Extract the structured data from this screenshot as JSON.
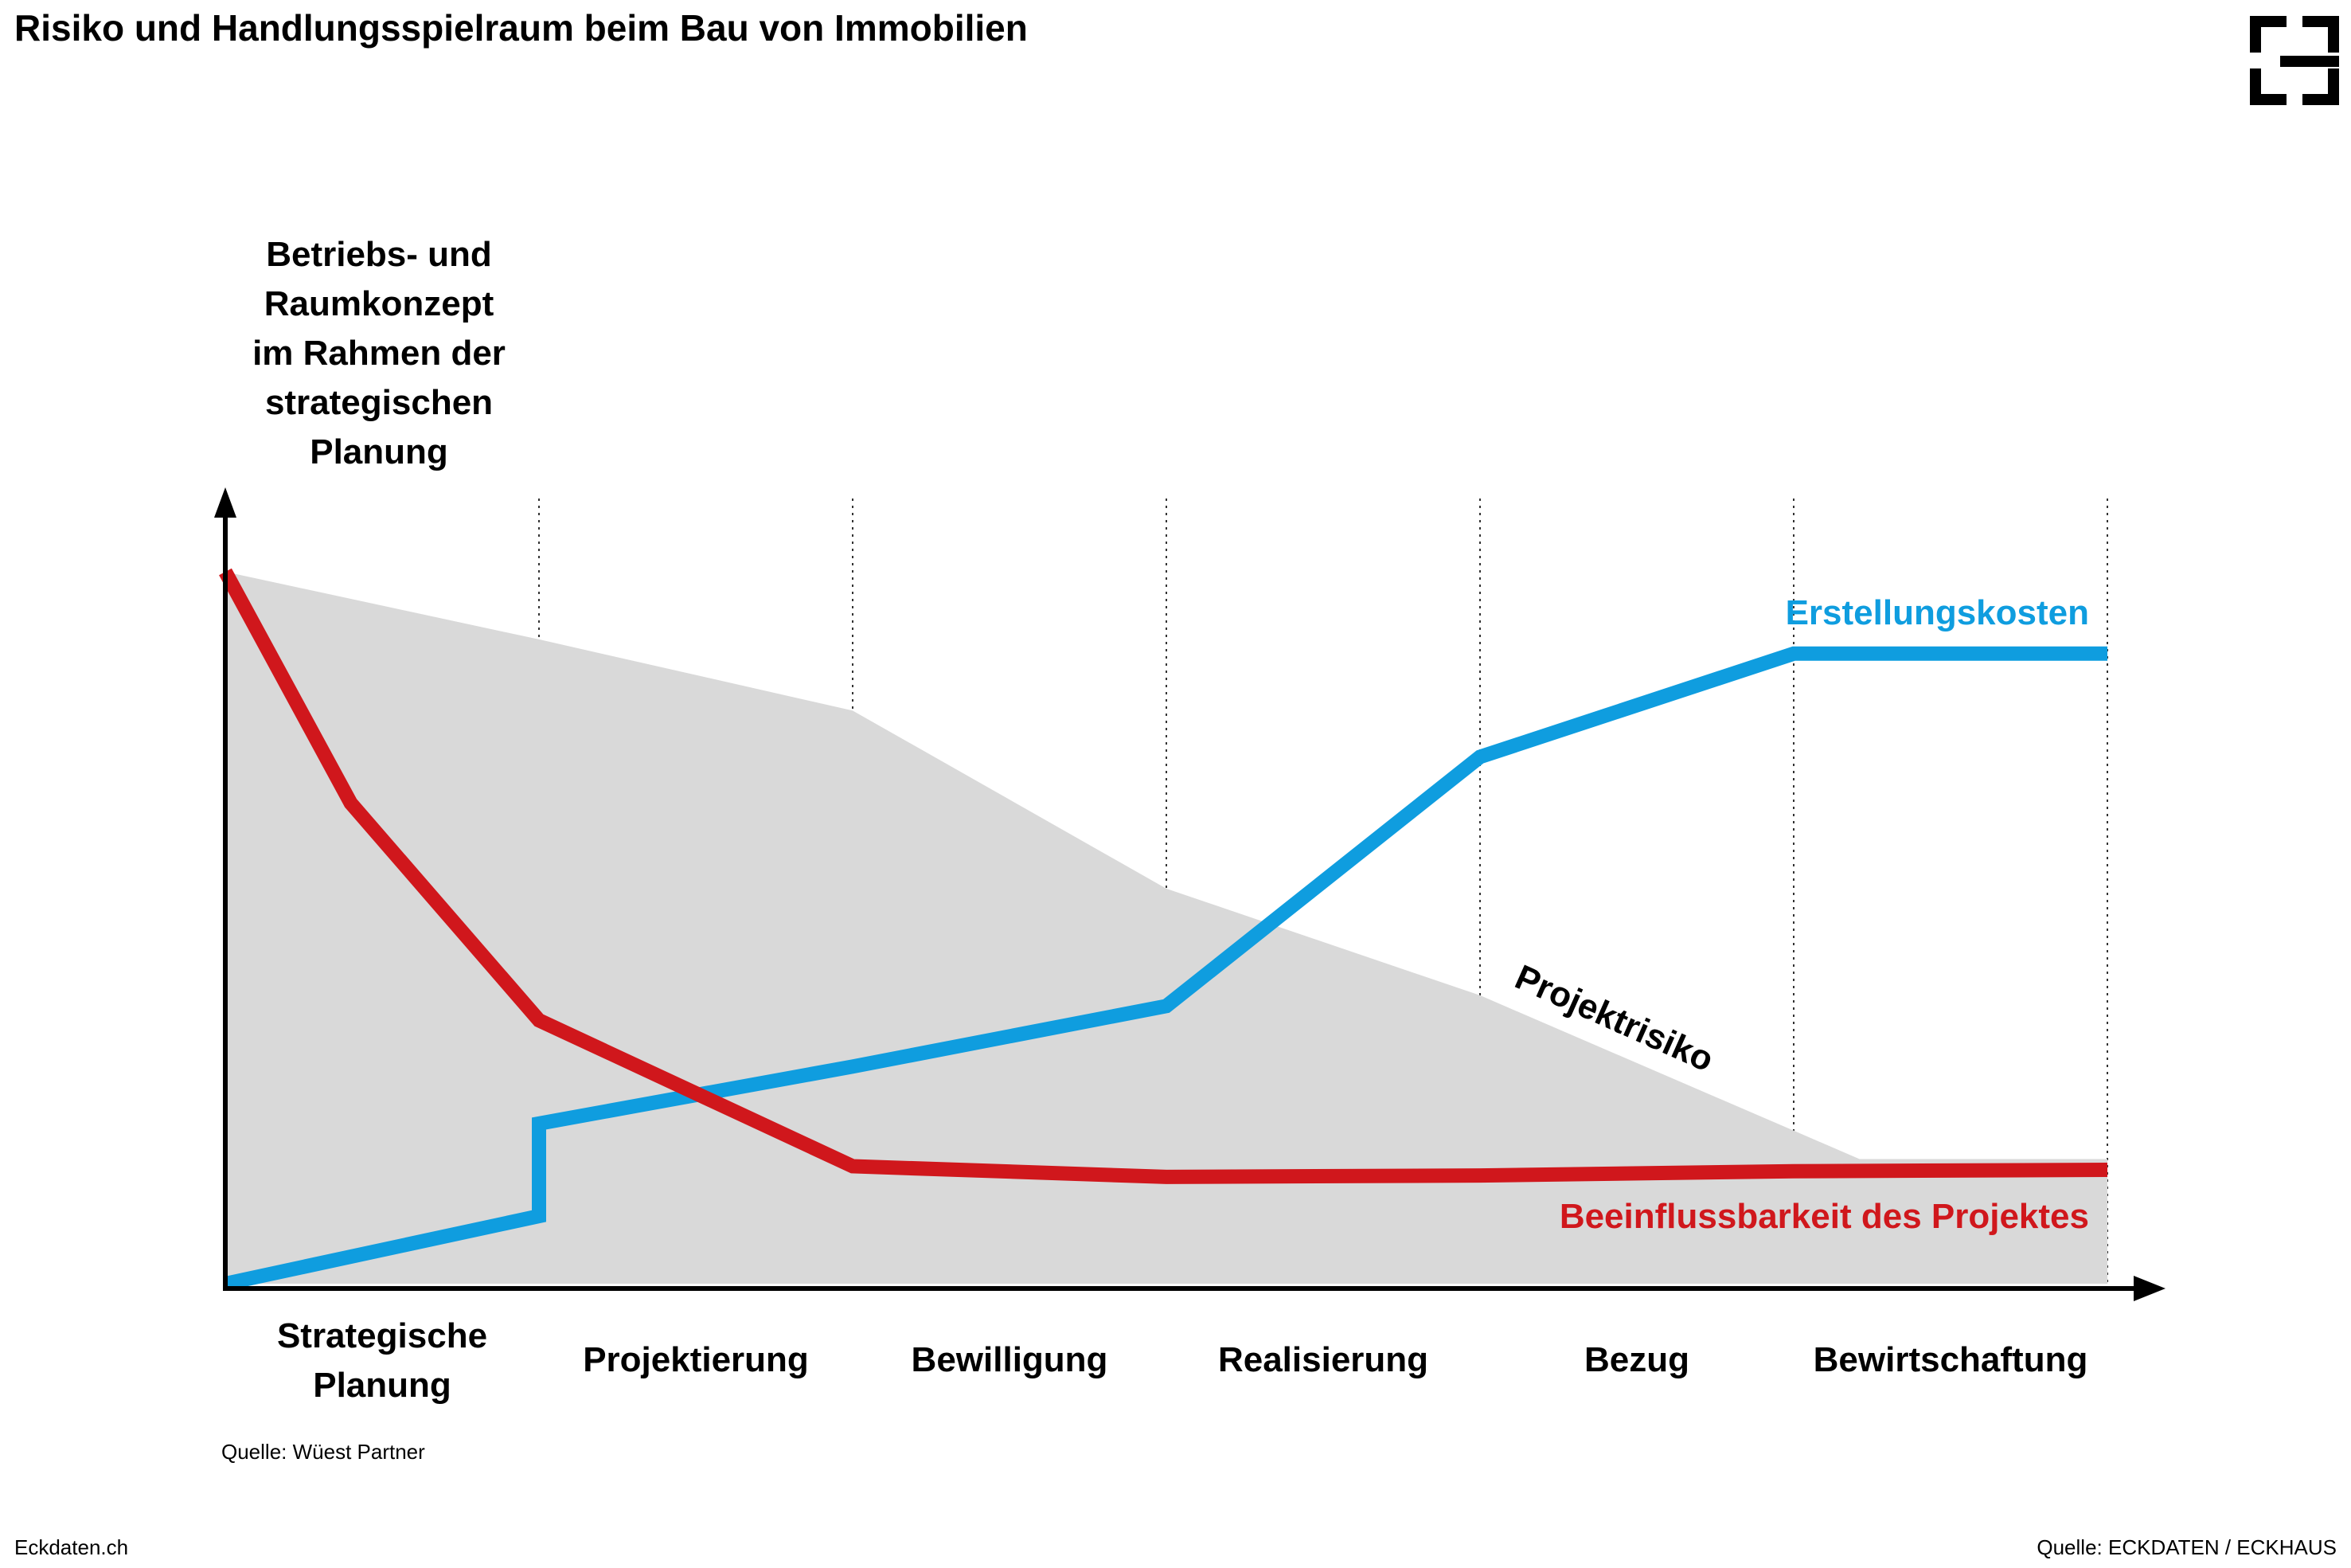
{
  "header": {
    "title": "Risiko und Handlungsspielraum beim Bau von Immobilien"
  },
  "brand": {
    "logo_icon": "eckdaten-bracket-logo"
  },
  "footer": {
    "left": "Eckdaten.ch",
    "right": "Quelle: ECKDATEN / ECKHAUS"
  },
  "chart_data": {
    "type": "line",
    "y_axis_label_lines": [
      "Betriebs- und",
      "Raumkonzept",
      "im Rahmen der",
      "strategischen",
      "Planung"
    ],
    "phases": [
      {
        "label_lines": [
          "Strategische",
          "Planung"
        ]
      },
      {
        "label_lines": [
          "Projektierung"
        ]
      },
      {
        "label_lines": [
          "Bewilligung"
        ]
      },
      {
        "label_lines": [
          "Realisierung"
        ]
      },
      {
        "label_lines": [
          "Bezug"
        ]
      },
      {
        "label_lines": [
          "Bewirtschaftung"
        ]
      }
    ],
    "xlim": [
      0,
      6
    ],
    "ylim": [
      0,
      100
    ],
    "grid": "vertical dotted lines at phase boundaries",
    "source": "Quelle: Wüest Partner",
    "area": {
      "name": "Projektrisiko",
      "color": "#d9d9d9",
      "label_color": "#000000",
      "points": [
        [
          0,
          100
        ],
        [
          1,
          90.5
        ],
        [
          2,
          80.5
        ],
        [
          3,
          55.5
        ],
        [
          4,
          40.5
        ],
        [
          5,
          21.5
        ],
        [
          5.21,
          17.5
        ],
        [
          6,
          17.5
        ]
      ]
    },
    "series": [
      {
        "name": "Erstellungskosten",
        "color": "#0f9ddf",
        "points": [
          [
            0,
            0
          ],
          [
            1,
            9.5
          ],
          [
            1,
            22.5
          ],
          [
            2,
            30.5
          ],
          [
            3,
            39
          ],
          [
            4,
            74
          ],
          [
            5,
            88.5
          ],
          [
            6,
            88.5
          ]
        ]
      },
      {
        "name": "Beeinflussbarkeit des Projektes",
        "color": "#d0171c",
        "points": [
          [
            0,
            100
          ],
          [
            0.4,
            67.5
          ],
          [
            1,
            37
          ],
          [
            2,
            16.5
          ],
          [
            3,
            15
          ],
          [
            4,
            15.2
          ],
          [
            5,
            15.8
          ],
          [
            6,
            16
          ]
        ]
      }
    ]
  }
}
